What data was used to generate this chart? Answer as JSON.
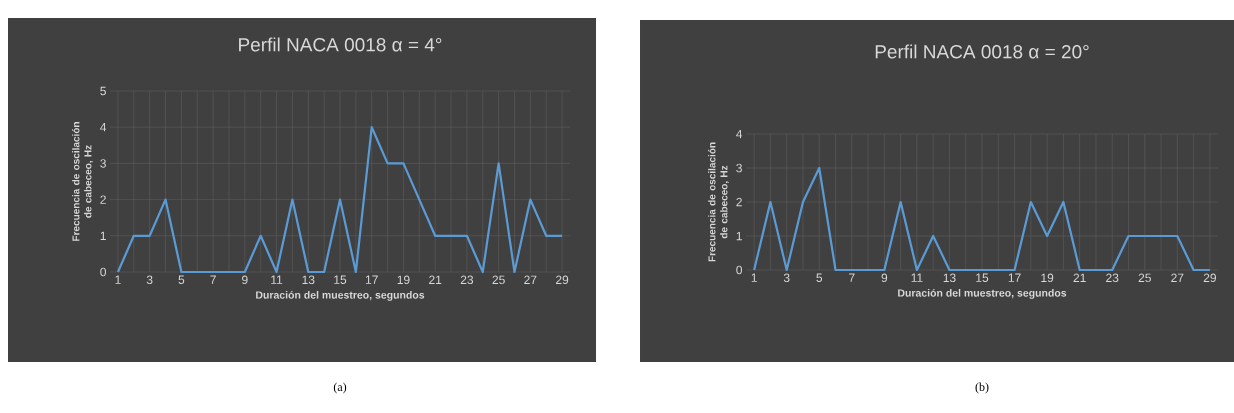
{
  "chart_data": [
    {
      "type": "line",
      "title": "Perfil NACA 0018 α = 4°",
      "xlabel": "Duración del muestreo, segundos",
      "ylabel": "Frecuencia de oscilación de cabeceo, Hz",
      "categories": [
        "1",
        null,
        "3",
        null,
        "5",
        null,
        "7",
        null,
        "9",
        null,
        "11",
        null,
        "13",
        null,
        "15",
        null,
        "17",
        null,
        "19",
        null,
        "21",
        null,
        "23",
        null,
        "25",
        null,
        "27",
        null,
        "29"
      ],
      "series": [
        {
          "color": "#5b9bd5",
          "values": [
            0,
            1,
            1,
            2,
            0,
            0,
            0,
            0,
            0,
            1,
            0,
            2,
            0,
            0,
            2,
            0,
            4,
            3,
            3,
            2,
            1,
            1,
            1,
            0,
            3,
            0,
            2,
            1,
            1
          ]
        }
      ],
      "ylim": [
        0,
        5
      ],
      "yticks": [
        0,
        1,
        2,
        3,
        4,
        5
      ],
      "grid": true,
      "annotations": [
        "(a)"
      ]
    },
    {
      "type": "line",
      "title": "Perfil NACA 0018 α = 20°",
      "xlabel": "Duración del muestreo, segundos",
      "ylabel": "Frecuencia de oscilación de cabeceo, Hz",
      "categories": [
        "1",
        null,
        "3",
        null,
        "5",
        null,
        "7",
        null,
        "9",
        null,
        "11",
        null,
        "13",
        null,
        "15",
        null,
        "17",
        null,
        "19",
        null,
        "21",
        null,
        "23",
        null,
        "25",
        null,
        "27",
        null,
        "29"
      ],
      "series": [
        {
          "color": "#5b9bd5",
          "values": [
            0,
            2,
            0,
            2,
            3,
            0,
            0,
            0,
            0,
            2,
            0,
            1,
            0,
            0,
            0,
            0,
            0,
            2,
            1,
            2,
            0,
            0,
            0,
            1,
            1,
            1,
            1,
            0,
            0
          ]
        }
      ],
      "ylim": [
        0,
        4
      ],
      "yticks": [
        0,
        1,
        2,
        3,
        4
      ],
      "grid": true,
      "annotations": [
        "(b)"
      ]
    }
  ]
}
